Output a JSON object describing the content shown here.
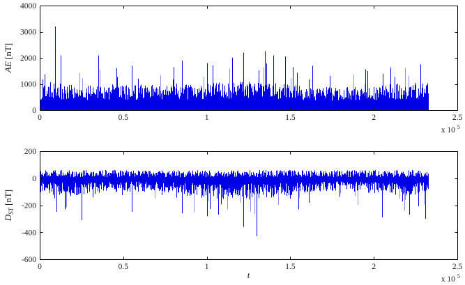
{
  "figure": {
    "background": "#ffffff",
    "axis_color": "#000000",
    "text_color": "#1c1c1c",
    "line_color": "#0000e8",
    "line_color_light": "#8f8ff0"
  },
  "chart_data": [
    {
      "type": "line",
      "name": "AE-index",
      "title": "",
      "ylabel": {
        "main": "AE",
        "sub": "",
        "rest": " [nT]"
      },
      "xlabel": "",
      "ylim": [
        0,
        4000
      ],
      "yticks": [
        0,
        1000,
        2000,
        3000,
        4000
      ],
      "ytick_labels": [
        "0",
        "1000",
        "2000",
        "3000",
        "4000"
      ],
      "xlim": [
        0,
        250000
      ],
      "xticks": [
        0,
        50000,
        100000,
        150000,
        200000,
        250000
      ],
      "xtick_labels": [
        "0",
        "0.5",
        "1",
        "1.5",
        "2",
        "2.5"
      ],
      "x_multiplier": {
        "prefix": "x 10",
        "exp": "5"
      },
      "x_data_end": 233000,
      "grid": false,
      "legend": null,
      "noise": {
        "seed": 421371,
        "mode": "positive",
        "envelope_x": [
          0,
          10000,
          25000,
          40000,
          60000,
          80000,
          100000,
          120000,
          140000,
          160000,
          180000,
          200000,
          215000,
          233000
        ],
        "envelope_y": [
          950,
          1020,
          900,
          980,
          960,
          1000,
          1060,
          1100,
          1040,
          900,
          860,
          950,
          1000,
          1050
        ],
        "solid_base": 550,
        "tall_prob": 0.085,
        "tall_gain": 1.75
      },
      "spikes": [
        {
          "x": 9000,
          "y": 3200
        },
        {
          "x": 12500,
          "y": 2100
        },
        {
          "x": 35000,
          "y": 2100
        },
        {
          "x": 55000,
          "y": 1700
        },
        {
          "x": 85000,
          "y": 1900
        },
        {
          "x": 100000,
          "y": 1800
        },
        {
          "x": 115000,
          "y": 2000
        },
        {
          "x": 122000,
          "y": 2200
        },
        {
          "x": 135000,
          "y": 2250
        },
        {
          "x": 140000,
          "y": 2100
        },
        {
          "x": 147000,
          "y": 2050
        },
        {
          "x": 163000,
          "y": 1700
        },
        {
          "x": 196000,
          "y": 1500
        },
        {
          "x": 210000,
          "y": 1600
        },
        {
          "x": 228000,
          "y": 1750
        }
      ]
    },
    {
      "type": "line",
      "name": "Dst-index",
      "title": "",
      "ylabel": {
        "main": "D",
        "sub": "ST",
        "rest": " [nT]"
      },
      "xlabel": "t",
      "ylim": [
        -600,
        200
      ],
      "yticks": [
        -600,
        -400,
        -200,
        0,
        200
      ],
      "ytick_labels": [
        "-600",
        "-400",
        "-200",
        "0",
        "200"
      ],
      "xlim": [
        0,
        250000
      ],
      "xticks": [
        0,
        50000,
        100000,
        150000,
        200000,
        250000
      ],
      "xtick_labels": [
        "0",
        "0.5",
        "1",
        "1.5",
        "2",
        "2.5"
      ],
      "x_multiplier": {
        "prefix": "x 10",
        "exp": "5"
      },
      "x_data_end": 233000,
      "grid": false,
      "legend": null,
      "noise": {
        "seed": 90817,
        "mode": "bipolar",
        "hi_band": [
          8,
          60
        ],
        "envelope_x": [
          0,
          20000,
          40000,
          60000,
          80000,
          100000,
          120000,
          140000,
          160000,
          180000,
          200000,
          220000,
          233000
        ],
        "envelope_y": [
          -120,
          -140,
          -110,
          -100,
          -120,
          -150,
          -160,
          -150,
          -110,
          -90,
          -120,
          -135,
          -110
        ],
        "deep_prob": 0.06,
        "deep_gain": 1.9
      },
      "spikes": [
        {
          "x": 10000,
          "y": -250
        },
        {
          "x": 15000,
          "y": -230
        },
        {
          "x": 25000,
          "y": -310
        },
        {
          "x": 55000,
          "y": -250
        },
        {
          "x": 85000,
          "y": -260
        },
        {
          "x": 100000,
          "y": -280
        },
        {
          "x": 107000,
          "y": -270
        },
        {
          "x": 122000,
          "y": -360
        },
        {
          "x": 130000,
          "y": -430
        },
        {
          "x": 155000,
          "y": -230
        },
        {
          "x": 205000,
          "y": -290
        },
        {
          "x": 221000,
          "y": -270
        },
        {
          "x": 231000,
          "y": -300
        }
      ]
    }
  ]
}
